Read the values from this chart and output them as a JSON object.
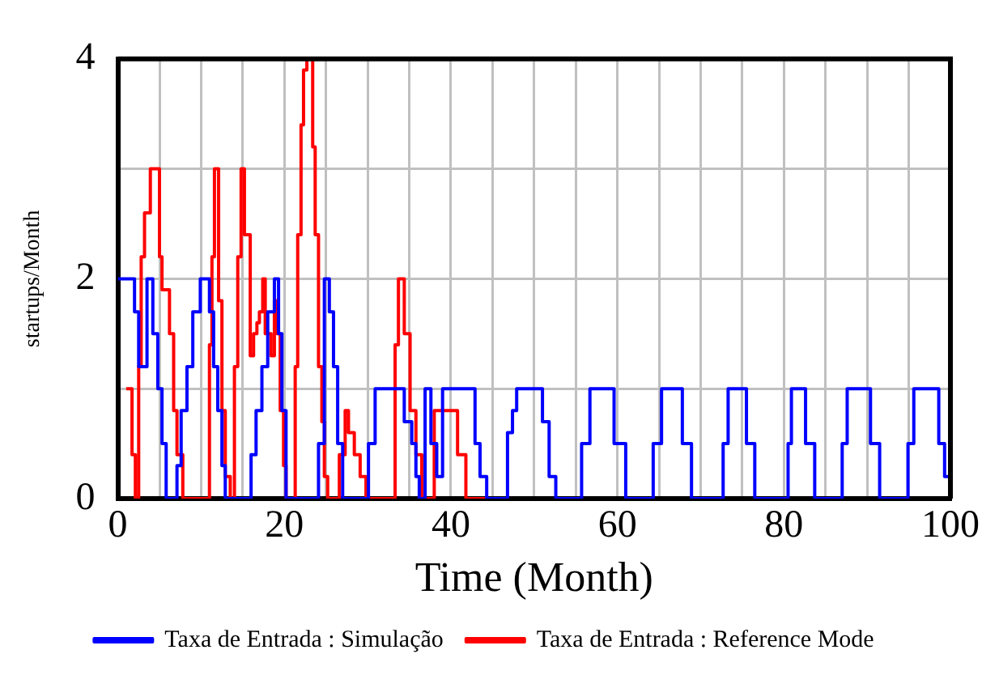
{
  "chart_data": {
    "type": "step",
    "xlabel": "Time (Month)",
    "ylabel": "startups/Month",
    "xlim": [
      0,
      100
    ],
    "xticks": [
      0,
      {
        "value": 5,
        "label": null
      },
      {
        "value": 10,
        "label": null
      },
      {
        "value": 15,
        "label": null
      },
      20,
      {
        "value": 25,
        "label": null
      },
      {
        "value": 30,
        "label": null
      },
      {
        "value": 35,
        "label": null
      },
      40,
      {
        "value": 45,
        "label": null
      },
      {
        "value": 50,
        "label": null
      },
      {
        "value": 55,
        "label": null
      },
      60,
      {
        "value": 65,
        "label": null
      },
      {
        "value": 70,
        "label": null
      },
      {
        "value": 75,
        "label": null
      },
      80,
      {
        "value": 85,
        "label": null
      },
      {
        "value": 90,
        "label": null
      },
      {
        "value": 95,
        "label": null
      },
      100
    ],
    "ylim": [
      0,
      4
    ],
    "yticks": [
      0,
      {
        "value": 1,
        "label": null
      },
      2,
      {
        "value": 3,
        "label": null
      },
      4
    ],
    "grid": true,
    "legend": "bottom",
    "marker": "none",
    "line_style": "solid",
    "series": [
      {
        "name": "Taxa de Entrada : Simulação",
        "color": "#0000ff",
        "x": [
          0,
          2,
          2.5,
          3.5,
          4.2,
          4.8,
          5.3,
          5.8,
          7.1,
          7.6,
          8.3,
          9,
          9.9,
          11,
          11.5,
          12,
          12.5,
          12.9,
          16,
          16.6,
          17.3,
          18,
          18.8,
          19.3,
          19.7,
          20.2,
          24.1,
          24.8,
          25.4,
          25.9,
          26.4,
          27,
          30.1,
          30.9,
          34.4,
          35.3,
          35.8,
          36.2,
          36.9,
          37.6,
          38.3,
          39,
          42.9,
          43.5,
          44.3,
          46.8,
          47.4,
          47.9,
          51,
          51.8,
          52.6,
          55.7,
          56.7,
          59.6,
          61,
          64.3,
          65.3,
          67.8,
          68.9,
          72.7,
          73.3,
          75.5,
          76.5,
          80.5,
          80.9,
          82.6,
          83.7,
          87,
          87.6,
          90.4,
          91.5,
          94.9,
          95.6,
          98.6,
          99.3,
          100
        ],
        "values": [
          2,
          1.7,
          1.2,
          2,
          1.5,
          1,
          0.5,
          0,
          0.3,
          0.8,
          1.2,
          1.7,
          2,
          1.7,
          1.2,
          0.8,
          0.3,
          0,
          0.4,
          0.8,
          1.2,
          1.7,
          2,
          1.5,
          0.8,
          0,
          0.5,
          2,
          1.7,
          1.2,
          0.5,
          0,
          0.5,
          1,
          0.7,
          0.5,
          0.2,
          0,
          1,
          0.5,
          0.2,
          1,
          0.5,
          0.2,
          0,
          0.6,
          0.8,
          1,
          0.7,
          0.2,
          0,
          0.5,
          1,
          0.5,
          0,
          0.5,
          1,
          0.5,
          0,
          0.5,
          1,
          0.5,
          0,
          0.5,
          1,
          0.5,
          0,
          0.5,
          1,
          0.5,
          0,
          0.5,
          1,
          0.5,
          0.2,
          0
        ]
      },
      {
        "name": "Taxa de Entrada : Reference Mode",
        "color": "#ff0000",
        "x": [
          1,
          1.7,
          2.1,
          2.5,
          2.8,
          3.2,
          3.9,
          5,
          5.3,
          6.2,
          6.7,
          7.1,
          7.8,
          11,
          11.3,
          11.6,
          12.1,
          12.5,
          12.9,
          13.5,
          14,
          14.4,
          14.8,
          15.2,
          15.9,
          16.3,
          16.7,
          17,
          17.4,
          17.7,
          18.4,
          18.8,
          19.1,
          19.5,
          19.9,
          20.2,
          21.3,
          21.6,
          22,
          22.3,
          22.7,
          23.4,
          23.7,
          24.1,
          24.5,
          24.8,
          25.2,
          26.6,
          27.3,
          27.7,
          28.4,
          29.1,
          29.8,
          33.3,
          33.7,
          34.4,
          35.1,
          35.8,
          36.5,
          38,
          40.8,
          41.8,
          47
        ],
        "values": [
          1,
          0.4,
          0,
          1.2,
          2.2,
          2.6,
          3,
          2.2,
          1.9,
          1.5,
          0.8,
          0.4,
          0,
          1.4,
          2.2,
          3,
          1.8,
          0.8,
          0.2,
          0,
          1.2,
          2.2,
          3,
          2.4,
          1.3,
          1.5,
          1.6,
          1.7,
          2,
          1.5,
          1.3,
          1.8,
          1.5,
          0.8,
          0.3,
          0,
          1.2,
          2.4,
          3.4,
          3.9,
          4,
          3.2,
          2.4,
          1.2,
          0.7,
          0.2,
          0,
          0.4,
          0.8,
          0.6,
          0.4,
          0.2,
          0,
          1.4,
          2,
          1.5,
          0.8,
          0.4,
          0,
          0.8,
          0.4,
          0,
          0
        ]
      }
    ]
  }
}
